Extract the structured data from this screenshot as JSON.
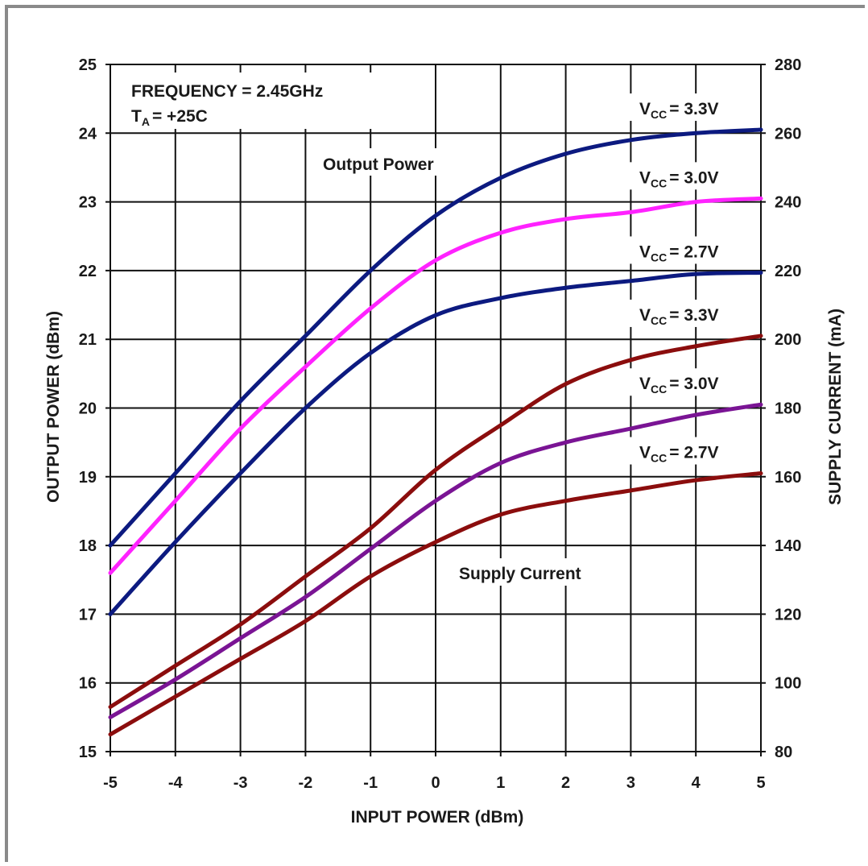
{
  "chart_data": {
    "type": "line",
    "xlabel": "INPUT POWER (dBm)",
    "ylabel_left": "OUTPUT POWER (dBm)",
    "ylabel_right": "SUPPLY CURRENT (mA)",
    "xlim": [
      -5,
      5
    ],
    "ylim_left": [
      15,
      25
    ],
    "ylim_right": [
      80,
      280
    ],
    "x_ticks": [
      "-5",
      "-4",
      "-3",
      "-2",
      "-1",
      "0",
      "1",
      "2",
      "3",
      "4",
      "5"
    ],
    "y_left_ticks": [
      "15",
      "16",
      "17",
      "18",
      "19",
      "20",
      "21",
      "22",
      "23",
      "24",
      "25"
    ],
    "y_right_ticks": [
      "80",
      "100",
      "120",
      "140",
      "160",
      "180",
      "200",
      "220",
      "240",
      "260",
      "280"
    ],
    "grid": true,
    "annotations": {
      "frequency": "FREQUENCY = 2.45GHz",
      "temp_main": "T",
      "temp_sub": "A",
      "temp_rest": "= +25C",
      "output_power": "Output Power",
      "supply_current": "Supply Current"
    },
    "x": [
      -5,
      -4,
      -3,
      -2,
      -1,
      0,
      1,
      2,
      3,
      4,
      5
    ],
    "series": [
      {
        "group": "output",
        "axis": "left",
        "label_main": "V",
        "label_sub": "CC",
        "label_rest": "= 3.3V",
        "color": "#0c1a80",
        "values": [
          18.0,
          19.05,
          20.1,
          21.05,
          22.0,
          22.8,
          23.35,
          23.7,
          23.9,
          24.0,
          24.05
        ]
      },
      {
        "group": "output",
        "axis": "left",
        "label_main": "V",
        "label_sub": "CC",
        "label_rest": "= 3.0V",
        "color": "#ff22ff",
        "values": [
          17.6,
          18.65,
          19.7,
          20.6,
          21.45,
          22.15,
          22.55,
          22.75,
          22.85,
          23.0,
          23.05
        ]
      },
      {
        "group": "output",
        "axis": "left",
        "label_main": "V",
        "label_sub": "CC",
        "label_rest": "= 2.7V",
        "color": "#0c1a80",
        "values": [
          17.0,
          18.05,
          19.05,
          20.0,
          20.8,
          21.35,
          21.6,
          21.75,
          21.85,
          21.95,
          21.97
        ]
      },
      {
        "group": "current",
        "axis": "right",
        "label_main": "V",
        "label_sub": "CC",
        "label_rest": "= 3.3V",
        "color": "#8b0d0d",
        "values": [
          93,
          105,
          117,
          131,
          145,
          162,
          175,
          187,
          194,
          198,
          201
        ]
      },
      {
        "group": "current",
        "axis": "right",
        "label_main": "V",
        "label_sub": "CC",
        "label_rest": "= 3.0V",
        "color": "#7a1494",
        "values": [
          90,
          101,
          113,
          125,
          139,
          153,
          164,
          170,
          174,
          178,
          181
        ]
      },
      {
        "group": "current",
        "axis": "right",
        "label_main": "V",
        "label_sub": "CC",
        "label_rest": "= 2.7V",
        "color": "#8b0d0d",
        "values": [
          85,
          96,
          107,
          118,
          131,
          141,
          149,
          153,
          156,
          159,
          161
        ]
      }
    ]
  }
}
